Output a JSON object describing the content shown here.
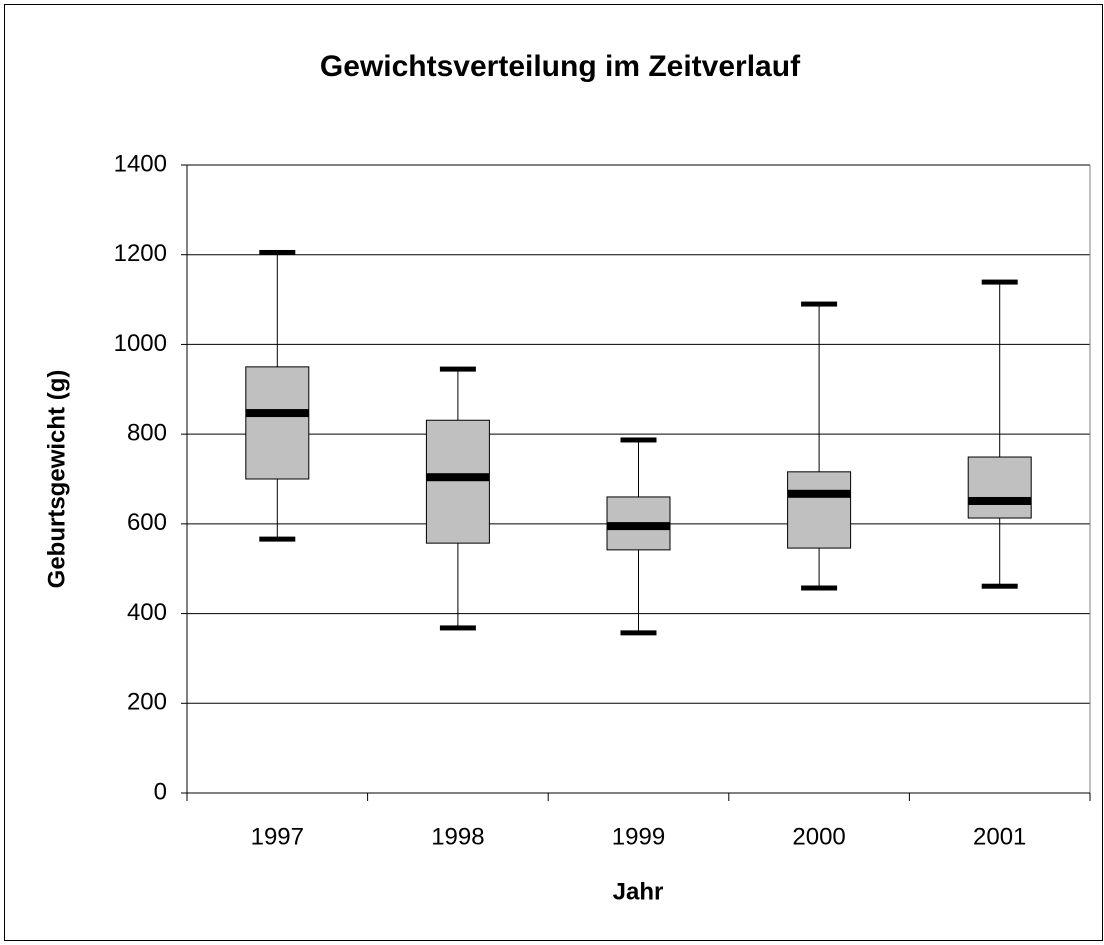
{
  "chart_data": {
    "type": "box",
    "title": "Gewichtsverteilung im Zeitverlauf",
    "x_label": "Jahr",
    "y_label": "Geburtsgewicht (g)",
    "categories": [
      "1997",
      "1998",
      "1999",
      "2000",
      "2001"
    ],
    "min": [
      566,
      368,
      357,
      457,
      461
    ],
    "q1": [
      700,
      557,
      542,
      546,
      613
    ],
    "median": [
      847,
      704,
      595,
      667,
      651
    ],
    "q3": [
      950,
      831,
      660,
      716,
      749
    ],
    "max": [
      1205,
      945,
      787,
      1090,
      1139
    ],
    "color": "#c0c0c0",
    "ylim": [
      0,
      1400
    ],
    "yticks": [
      0,
      200,
      400,
      600,
      800,
      1000,
      1200,
      1400
    ],
    "grid": true
  }
}
